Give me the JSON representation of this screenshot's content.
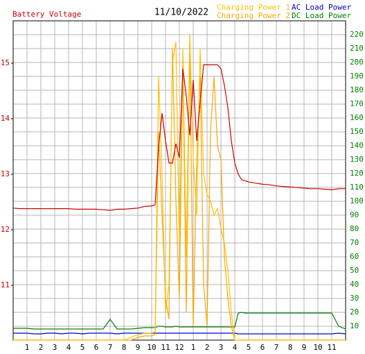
{
  "chart_data": {
    "type": "line",
    "title": "11/10/2022",
    "x": [
      0,
      0.5,
      1,
      1.5,
      2,
      2.5,
      3,
      3.5,
      4,
      4.5,
      5,
      5.5,
      6,
      6.5,
      7,
      7.5,
      8,
      8.5,
      9,
      9.5,
      10,
      10.25,
      10.5,
      10.75,
      11,
      11.25,
      11.5,
      11.75,
      12,
      12.25,
      12.5,
      12.75,
      13,
      13.25,
      13.5,
      13.75,
      14,
      14.25,
      14.5,
      14.75,
      15,
      15.25,
      15.5,
      15.75,
      16,
      16.25,
      16.5,
      16.75,
      17,
      17.5,
      18,
      18.5,
      19,
      19.5,
      20,
      20.5,
      21,
      21.5,
      22,
      22.5,
      23,
      23.5,
      24
    ],
    "xlim": [
      0,
      24
    ],
    "xticks": [
      1,
      2,
      3,
      4,
      5,
      6,
      7,
      8,
      9,
      10,
      11,
      12,
      {
        "value": 13,
        "label": "1"
      },
      {
        "value": 14,
        "label": "2"
      },
      {
        "value": 15,
        "label": "3"
      },
      {
        "value": 16,
        "label": "4"
      },
      {
        "value": 17,
        "label": "5"
      },
      {
        "value": 18,
        "label": "6"
      },
      {
        "value": 19,
        "label": "7"
      },
      {
        "value": 20,
        "label": "8"
      },
      {
        "value": 21,
        "label": "9"
      },
      {
        "value": 22,
        "label": "10"
      },
      {
        "value": 23,
        "label": "11"
      }
    ],
    "ylim": [
      10.0125,
      15.7625
    ],
    "yticks": [
      11,
      12,
      13,
      14,
      15
    ],
    "y2lim": [
      0,
      230
    ],
    "y2ticks": [
      10,
      20,
      30,
      40,
      50,
      60,
      70,
      80,
      90,
      100,
      110,
      120,
      130,
      140,
      150,
      160,
      170,
      180,
      190,
      200,
      210,
      220
    ],
    "grid": true,
    "series": [
      {
        "name": "Battery Voltage",
        "color": "#cc0000",
        "values": [
          12.39,
          12.38,
          12.38,
          12.38,
          12.38,
          12.38,
          12.38,
          12.38,
          12.38,
          12.37,
          12.37,
          12.37,
          12.37,
          12.36,
          12.35,
          12.37,
          12.37,
          12.38,
          12.39,
          12.42,
          12.43,
          12.45,
          13.5,
          14.1,
          13.6,
          13.2,
          13.2,
          13.55,
          13.3,
          14.9,
          14.4,
          13.7,
          14.7,
          13.6,
          14.3,
          14.97,
          14.97,
          14.97,
          14.97,
          14.97,
          14.9,
          14.6,
          14.2,
          13.6,
          13.2,
          13.0,
          12.9,
          12.88,
          12.86,
          12.84,
          12.82,
          12.81,
          12.79,
          12.78,
          12.77,
          12.76,
          12.75,
          12.74,
          12.74,
          12.73,
          12.72,
          12.74,
          12.74
        ]
      },
      {
        "name": "Charging Power 1",
        "color": "#ffc000",
        "axis": "y2",
        "values": [
          0,
          0,
          0,
          0,
          0,
          0,
          0,
          0,
          0,
          0,
          0,
          0,
          0,
          0,
          0,
          0,
          0,
          2,
          4,
          5,
          5,
          6,
          190,
          120,
          20,
          40,
          200,
          215,
          70,
          210,
          60,
          220,
          130,
          90,
          210,
          120,
          105,
          100,
          90,
          95,
          80,
          70,
          50,
          20,
          0,
          0,
          0,
          0,
          0,
          0,
          0,
          0,
          0,
          0,
          0,
          0,
          0,
          0,
          0,
          0,
          0,
          0,
          0
        ]
      },
      {
        "name": "Charging Power 2",
        "color": "#ffa500",
        "axis": "y2",
        "values": [
          0,
          0,
          0,
          0,
          0,
          0,
          0,
          0,
          0,
          0,
          0,
          0,
          0,
          0,
          0,
          0,
          0,
          0,
          2,
          3,
          3,
          4,
          150,
          90,
          30,
          15,
          210,
          100,
          30,
          200,
          20,
          215,
          10,
          130,
          190,
          40,
          10,
          150,
          190,
          140,
          130,
          60,
          30,
          10,
          0,
          0,
          0,
          0,
          0,
          0,
          0,
          0,
          0,
          0,
          0,
          0,
          0,
          0,
          0,
          0,
          0,
          0,
          0
        ]
      },
      {
        "name": "AC Load Power",
        "color": "#0000cc",
        "axis": "y2",
        "values": [
          5,
          5,
          5,
          4.5,
          4.5,
          5,
          5,
          4.5,
          5,
          5,
          4.5,
          5,
          5,
          5,
          5,
          4.5,
          5,
          5,
          5,
          5,
          5,
          5,
          5,
          5,
          5,
          5,
          5,
          5,
          5,
          5,
          5,
          5,
          5,
          5,
          5,
          5,
          5,
          5,
          5,
          5,
          5,
          5,
          5,
          5,
          5,
          4.5,
          4.5,
          4.5,
          4.5,
          4.5,
          4.5,
          4.5,
          4.5,
          4.5,
          4.5,
          4.5,
          4.5,
          4.5,
          4.5,
          4.5,
          4.5,
          5,
          4.5
        ]
      },
      {
        "name": "DC Load Power",
        "color": "#008000",
        "axis": "y2",
        "values": [
          8.5,
          8.5,
          8.5,
          8,
          8,
          8,
          8,
          8,
          8,
          8,
          8,
          8,
          8,
          8,
          15,
          8,
          8,
          8,
          8.5,
          9,
          9,
          9,
          10,
          10,
          9.5,
          9.5,
          9.5,
          10,
          9.5,
          9.5,
          9.5,
          9.5,
          9.5,
          9.5,
          9.5,
          9.5,
          9.5,
          9.5,
          9.5,
          9.5,
          9.5,
          9.5,
          9.5,
          9.5,
          9.5,
          19.5,
          20,
          19.5,
          19.5,
          19.5,
          19.5,
          19.5,
          19.5,
          19.5,
          19.5,
          19.5,
          19.5,
          19.5,
          19.5,
          19.5,
          19.5,
          10,
          8
        ]
      }
    ]
  }
}
